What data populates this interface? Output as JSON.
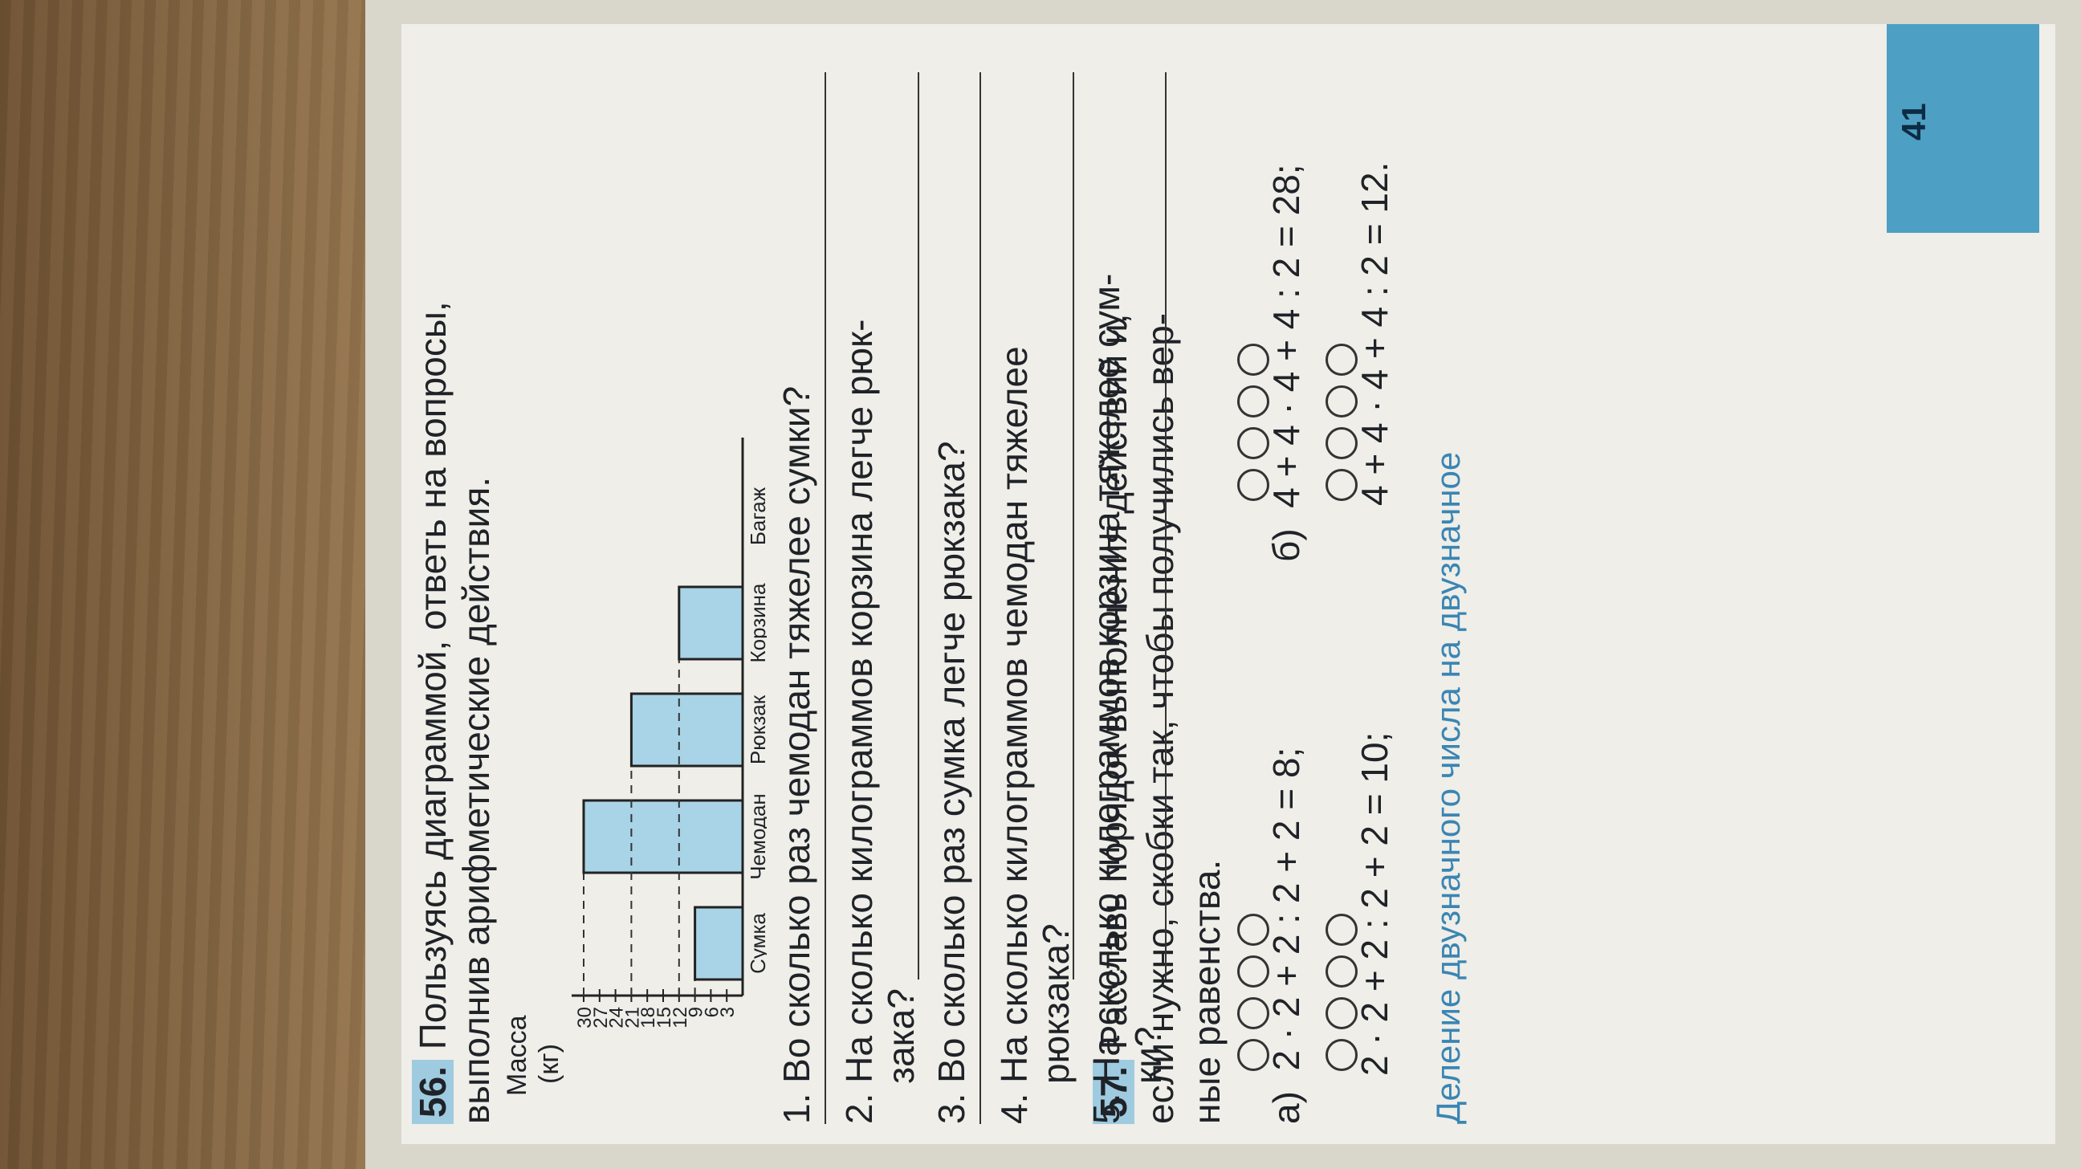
{
  "task56": {
    "number": "56.",
    "line1": "Пользуясь диаграммой, ответь на вопросы,",
    "line2": "выполнив арифметические действия."
  },
  "chart_data": {
    "type": "bar",
    "ylabel_line1": "Масса",
    "ylabel_line2": "(кг)",
    "ylim": [
      0,
      30
    ],
    "yticks": [
      3,
      6,
      9,
      12,
      15,
      18,
      21,
      24,
      27,
      30
    ],
    "categories": [
      "Сумка",
      "Чемодан",
      "Рюкзак",
      "Корзина",
      "Багаж"
    ],
    "values": [
      9,
      30,
      21,
      12,
      null
    ],
    "grid": "dashed lines at bar tops"
  },
  "questions": [
    {
      "n": "1.",
      "text": "Во сколько раз чемодан тяжелее сумки?"
    },
    {
      "n": "2.",
      "text": "На сколько килограммов корзина легче рюк-",
      "cont": "зака?"
    },
    {
      "n": "3.",
      "text": "Во сколько раз сумка легче рюкзака?"
    },
    {
      "n": "4.",
      "text": "На сколько килограммов чемодан тяжелее",
      "cont": "рюкзака?"
    },
    {
      "n": "5.",
      "text": "На сколько килограммов корзина тяжелее сум-",
      "cont": "ки?"
    }
  ],
  "task57": {
    "number": "57.",
    "line1": "Расставь порядок выполнения действий и,",
    "line2": "если нужно, скобки так, чтобы получились вер-",
    "line3": "ные равенства.",
    "a_label": "а)",
    "a1": "2 · 2 + 2 : 2 + 2 = 8;",
    "a2": "2 · 2 + 2 : 2 + 2 = 10;",
    "b_label": "б)",
    "b1": "4 + 4 · 4 + 4 : 2 = 28;",
    "b2": "4 + 4 · 4 + 4 : 2 = 12."
  },
  "footer": "Деление двузначного числа на двузначное",
  "page_number": "41"
}
